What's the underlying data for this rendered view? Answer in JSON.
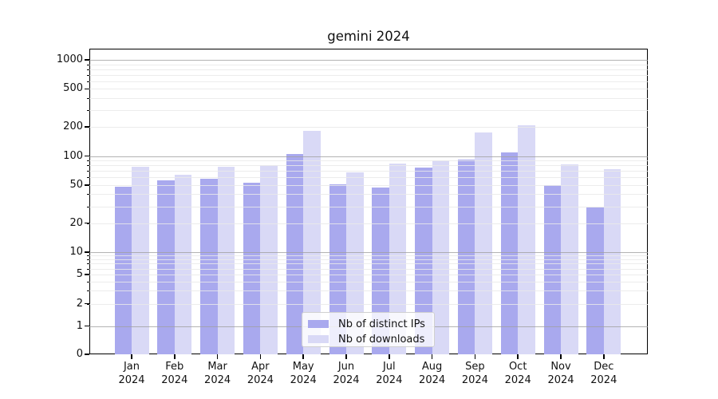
{
  "title": "gemini 2024",
  "colors": {
    "bar_distinct_ips": "#a9a9ee",
    "bar_downloads": "#d9d9f6",
    "grid_major": "rgba(160,160,160,0.8)",
    "grid_minor": "rgba(233,233,233,0.85)",
    "axis": "#000000"
  },
  "y_axis": {
    "tick_labels": [
      "1000",
      "500",
      "200",
      "100",
      "50",
      "20",
      "10",
      "5",
      "2",
      "1",
      "0"
    ]
  },
  "x_axis": {
    "year_line": "2024",
    "months": [
      "Jan",
      "Feb",
      "Mar",
      "Apr",
      "May",
      "Jun",
      "Jul",
      "Aug",
      "Sep",
      "Oct",
      "Nov",
      "Dec"
    ]
  },
  "legend": {
    "items": [
      {
        "label": "Nb of distinct IPs",
        "color_key": "bar_distinct_ips"
      },
      {
        "label": "Nb of downloads",
        "color_key": "bar_downloads"
      }
    ]
  },
  "chart_data": {
    "type": "bar",
    "title": "gemini 2024",
    "categories": [
      "Jan 2024",
      "Feb 2024",
      "Mar 2024",
      "Apr 2024",
      "May 2024",
      "Jun 2024",
      "Jul 2024",
      "Aug 2024",
      "Sep 2024",
      "Oct 2024",
      "Nov 2024",
      "Dec 2024"
    ],
    "series": [
      {
        "name": "Nb of distinct IPs",
        "values": [
          48,
          56,
          58,
          53,
          105,
          51,
          47,
          76,
          92,
          108,
          50,
          29
        ]
      },
      {
        "name": "Nb of downloads",
        "values": [
          78,
          64,
          77,
          81,
          182,
          67,
          84,
          90,
          177,
          207,
          82,
          73
        ]
      }
    ],
    "xlabel": "",
    "ylabel": "",
    "yscale": "symlog",
    "yticks": [
      0,
      1,
      2,
      5,
      10,
      20,
      50,
      100,
      200,
      500,
      1000
    ],
    "ylim": [
      0,
      1300
    ],
    "grid": true,
    "grid_over_bars": true,
    "legend_position": "lower center"
  }
}
